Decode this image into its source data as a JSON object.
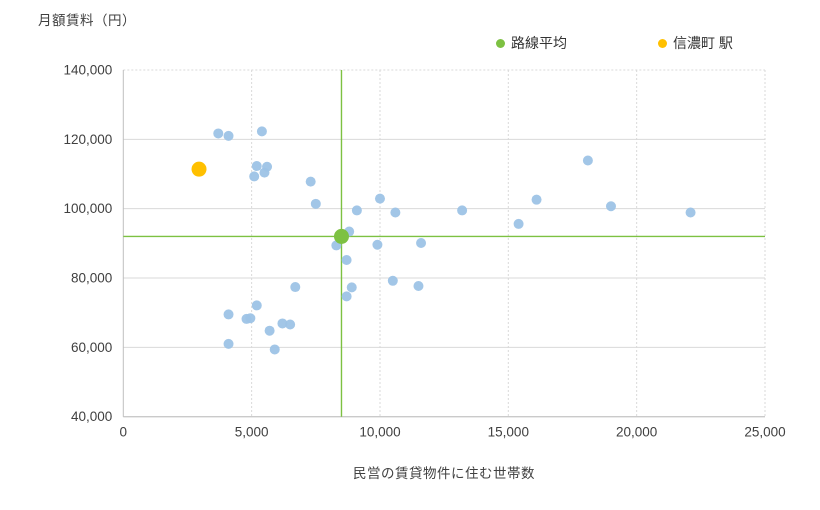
{
  "chart_data": {
    "type": "scatter",
    "y_axis_title": "月額賃料（円）",
    "x_axis_title": "民営の賃貸物件に住む世帯数",
    "xlim": [
      0,
      25000
    ],
    "ylim": [
      40000,
      140000
    ],
    "x_ticks": [
      0,
      5000,
      10000,
      15000,
      20000,
      25000
    ],
    "y_ticks": [
      40000,
      60000,
      80000,
      100000,
      120000,
      140000
    ],
    "grid": true,
    "legend_position": "top",
    "colors": {
      "station_points": "#9DC3E6",
      "line_average": "#7DC142",
      "shinanomachi": "#FFC000",
      "gridline": "#D9D9D9",
      "axis_line": "#BFBFBF",
      "text": "#404040"
    },
    "series": [
      {
        "id": "stations",
        "color": "#9DC3E6",
        "marker_radius": 5,
        "points": [
          [
            3700,
            121700
          ],
          [
            4100,
            121000
          ],
          [
            5400,
            122300
          ],
          [
            5200,
            112300
          ],
          [
            5600,
            112100
          ],
          [
            5500,
            110400
          ],
          [
            5100,
            109300
          ],
          [
            7300,
            107800
          ],
          [
            7500,
            101400
          ],
          [
            10000,
            102900
          ],
          [
            9100,
            99500
          ],
          [
            10600,
            98900
          ],
          [
            13200,
            99500
          ],
          [
            16100,
            102600
          ],
          [
            18100,
            113900
          ],
          [
            19000,
            100700
          ],
          [
            22100,
            98900
          ],
          [
            15400,
            95600
          ],
          [
            8800,
            93400
          ],
          [
            8300,
            89400
          ],
          [
            9900,
            89600
          ],
          [
            11600,
            90100
          ],
          [
            8700,
            85200
          ],
          [
            10500,
            79200
          ],
          [
            11500,
            77700
          ],
          [
            8900,
            77300
          ],
          [
            8700,
            74700
          ],
          [
            6700,
            77400
          ],
          [
            5200,
            72100
          ],
          [
            4100,
            69500
          ],
          [
            4800,
            68200
          ],
          [
            4950,
            68400
          ],
          [
            6200,
            66900
          ],
          [
            6500,
            66600
          ],
          [
            5700,
            64800
          ],
          [
            4100,
            61000
          ],
          [
            5900,
            59400
          ]
        ]
      },
      {
        "id": "line-average",
        "label": "路線平均",
        "color": "#7DC142",
        "marker_radius": 7.5,
        "crosshair": true,
        "points": [
          [
            8500,
            92000
          ]
        ]
      },
      {
        "id": "shinanomachi-station",
        "label": "信濃町 駅",
        "color": "#FFC000",
        "marker_radius": 7.5,
        "points": [
          [
            2950,
            111400
          ]
        ]
      }
    ],
    "legend": [
      {
        "label": "路線平均",
        "color": "#7DC142"
      },
      {
        "label": "信濃町 駅",
        "color": "#FFC000"
      }
    ]
  }
}
